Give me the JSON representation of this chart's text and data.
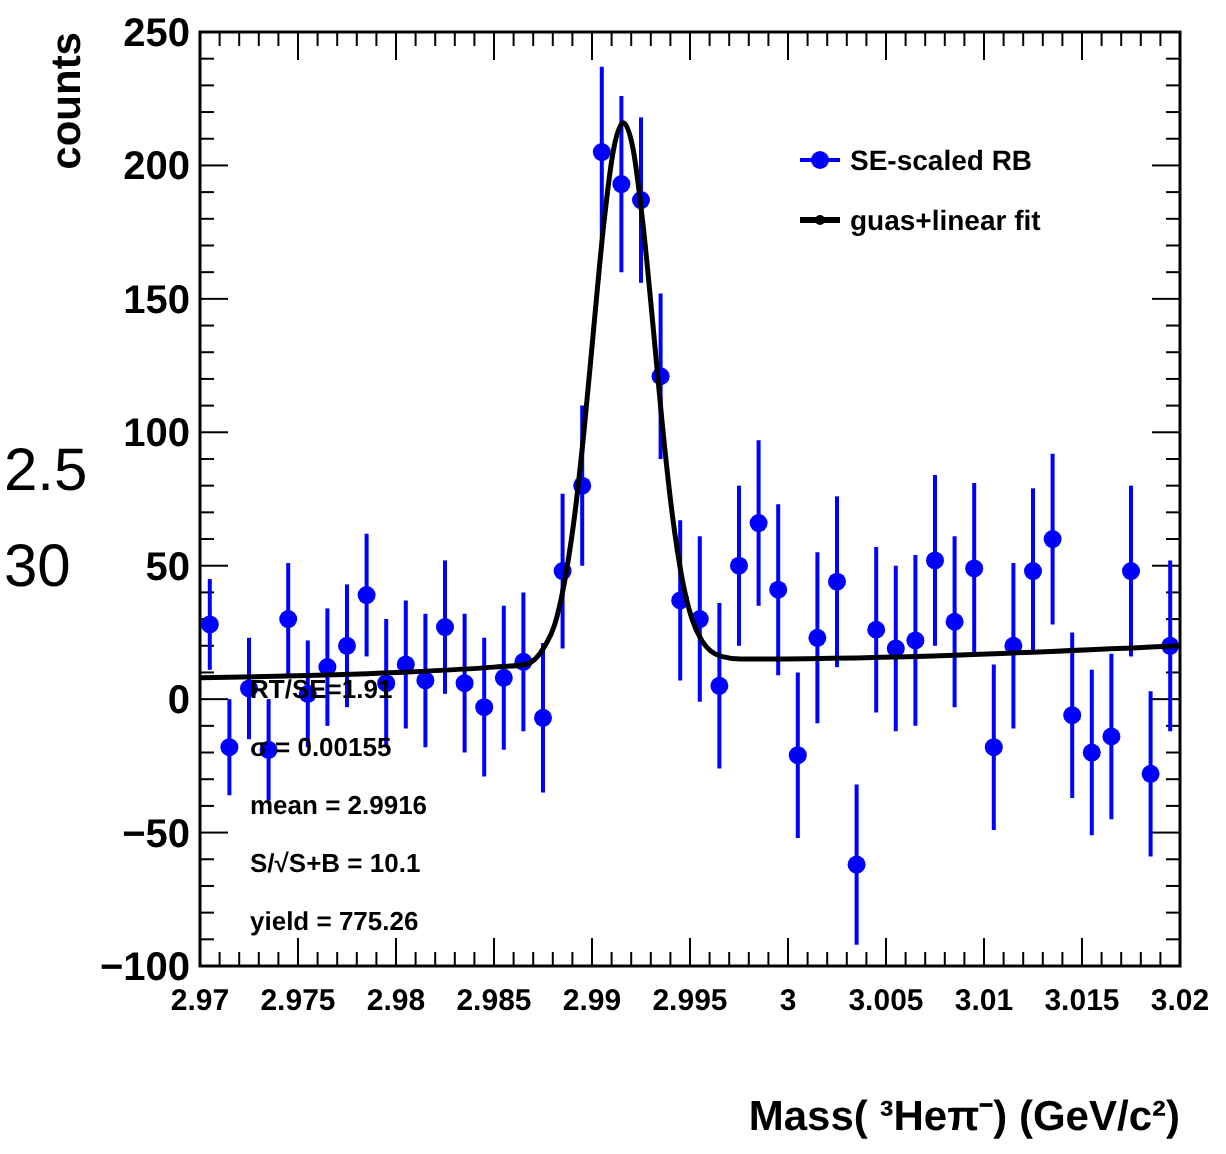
{
  "chart_data": {
    "type": "scatter",
    "xlabel": "Mass( ³Heπ⁻) (GeV/c²)",
    "ylabel": "counts",
    "xlim": [
      2.97,
      3.02
    ],
    "ylim": [
      -100,
      250
    ],
    "xticks": [
      2.97,
      {
        "value": 2.971,
        "label": null
      },
      {
        "value": 2.972,
        "label": null
      },
      {
        "value": 2.973,
        "label": null
      },
      {
        "value": 2.974,
        "label": null
      },
      2.975,
      {
        "value": 2.976,
        "label": null
      },
      {
        "value": 2.977,
        "label": null
      },
      {
        "value": 2.978,
        "label": null
      },
      {
        "value": 2.979,
        "label": null
      },
      2.98,
      {
        "value": 2.981,
        "label": null
      },
      {
        "value": 2.982,
        "label": null
      },
      {
        "value": 2.983,
        "label": null
      },
      {
        "value": 2.984,
        "label": null
      },
      2.985,
      {
        "value": 2.986,
        "label": null
      },
      {
        "value": 2.987,
        "label": null
      },
      {
        "value": 2.988,
        "label": null
      },
      {
        "value": 2.989,
        "label": null
      },
      2.99,
      {
        "value": 2.991,
        "label": null
      },
      {
        "value": 2.992,
        "label": null
      },
      {
        "value": 2.993,
        "label": null
      },
      {
        "value": 2.994,
        "label": null
      },
      2.995,
      {
        "value": 2.996,
        "label": null
      },
      {
        "value": 2.997,
        "label": null
      },
      {
        "value": 2.998,
        "label": null
      },
      {
        "value": 2.999,
        "label": null
      },
      3,
      {
        "value": 3.001,
        "label": null
      },
      {
        "value": 3.002,
        "label": null
      },
      {
        "value": 3.003,
        "label": null
      },
      {
        "value": 3.004,
        "label": null
      },
      3.005,
      {
        "value": 3.006,
        "label": null
      },
      {
        "value": 3.007,
        "label": null
      },
      {
        "value": 3.008,
        "label": null
      },
      {
        "value": 3.009,
        "label": null
      },
      3.01,
      {
        "value": 3.011,
        "label": null
      },
      {
        "value": 3.012,
        "label": null
      },
      {
        "value": 3.013,
        "label": null
      },
      {
        "value": 3.014,
        "label": null
      },
      3.015,
      {
        "value": 3.016,
        "label": null
      },
      {
        "value": 3.017,
        "label": null
      },
      {
        "value": 3.018,
        "label": null
      },
      {
        "value": 3.019,
        "label": null
      },
      3.02
    ],
    "yticks": [
      -100,
      {
        "value": -90,
        "label": null
      },
      {
        "value": -80,
        "label": null
      },
      {
        "value": -70,
        "label": null
      },
      {
        "value": -60,
        "label": null
      },
      -50,
      {
        "value": -40,
        "label": null
      },
      {
        "value": -30,
        "label": null
      },
      {
        "value": -20,
        "label": null
      },
      {
        "value": -10,
        "label": null
      },
      0,
      {
        "value": 10,
        "label": null
      },
      {
        "value": 20,
        "label": null
      },
      {
        "value": 30,
        "label": null
      },
      {
        "value": 40,
        "label": null
      },
      50,
      {
        "value": 60,
        "label": null
      },
      {
        "value": 70,
        "label": null
      },
      {
        "value": 80,
        "label": null
      },
      {
        "value": 90,
        "label": null
      },
      100,
      {
        "value": 110,
        "label": null
      },
      {
        "value": 120,
        "label": null
      },
      {
        "value": 130,
        "label": null
      },
      {
        "value": 140,
        "label": null
      },
      150,
      {
        "value": 160,
        "label": null
      },
      {
        "value": 170,
        "label": null
      },
      {
        "value": 180,
        "label": null
      },
      {
        "value": 190,
        "label": null
      },
      200,
      {
        "value": 210,
        "label": null
      },
      {
        "value": 220,
        "label": null
      },
      {
        "value": 230,
        "label": null
      },
      {
        "value": 240,
        "label": null
      },
      250
    ],
    "legend": "top right",
    "grid": false,
    "series": [
      {
        "name": "SE-scaled RB",
        "marker": "circle",
        "color": "#0000ff",
        "x": [
          2.9705,
          2.9715,
          2.9725,
          2.9735,
          2.9745,
          2.9755,
          2.9765,
          2.9775,
          2.9785,
          2.9795,
          2.9805,
          2.9815,
          2.9825,
          2.9835,
          2.9845,
          2.9855,
          2.9865,
          2.9875,
          2.9885,
          2.9895,
          2.9905,
          2.9915,
          2.9925,
          2.9935,
          2.9945,
          2.9955,
          2.9965,
          2.9975,
          2.9985,
          2.9995,
          3.0005,
          3.0015,
          3.0025,
          3.0035,
          3.0045,
          3.0055,
          3.0065,
          3.0075,
          3.0085,
          3.0095,
          3.0105,
          3.0115,
          3.0125,
          3.0135,
          3.0145,
          3.0155,
          3.0165,
          3.0175,
          3.0185,
          3.0195
        ],
        "values": [
          28,
          -18,
          4,
          -19,
          30,
          2,
          12,
          20,
          39,
          6,
          13,
          7,
          27,
          6,
          -3,
          8,
          14,
          -7,
          48,
          80,
          205,
          193,
          187,
          121,
          37,
          30,
          5,
          50,
          66,
          41,
          -21,
          23,
          44,
          -62,
          26,
          19,
          22,
          52,
          29,
          49,
          -18,
          20,
          48,
          60,
          -6,
          -20,
          -14,
          48,
          -28,
          20
        ],
        "errors": [
          17,
          18,
          19,
          19,
          21,
          20,
          22,
          23,
          23,
          24,
          24,
          25,
          25,
          26,
          26,
          27,
          26,
          28,
          29,
          30,
          32,
          33,
          31,
          31,
          30,
          31,
          31,
          30,
          31,
          32,
          31,
          32,
          32,
          30,
          31,
          31,
          32,
          32,
          32,
          32,
          31,
          31,
          31,
          32,
          31,
          31,
          31,
          32,
          31,
          32
        ]
      },
      {
        "name": "guas+linear fit",
        "type": "line",
        "color": "#000000",
        "marker": "none",
        "x": [
          2.97,
          2.98,
          2.985,
          2.9866,
          2.9876,
          2.9881,
          2.9886,
          2.9891,
          2.9896,
          2.9901,
          2.9906,
          2.9911,
          2.9916,
          2.9921,
          2.9926,
          2.9931,
          2.9936,
          2.9941,
          2.9946,
          2.9951,
          2.9956,
          2.9966,
          2.9976,
          3.02
        ],
        "values": [
          8,
          10,
          12,
          13,
          20,
          28,
          44,
          68,
          101,
          140,
          178,
          206,
          216,
          206,
          178,
          141,
          102,
          69,
          45,
          30,
          22,
          16,
          15,
          20
        ]
      }
    ],
    "annotations": [
      "RT/SE=1.91",
      "σ = 0.00155",
      "mean = 2.9916",
      "S/√S+B = 10.1",
      "yield = 775.26",
      "2.5",
      "30"
    ]
  }
}
